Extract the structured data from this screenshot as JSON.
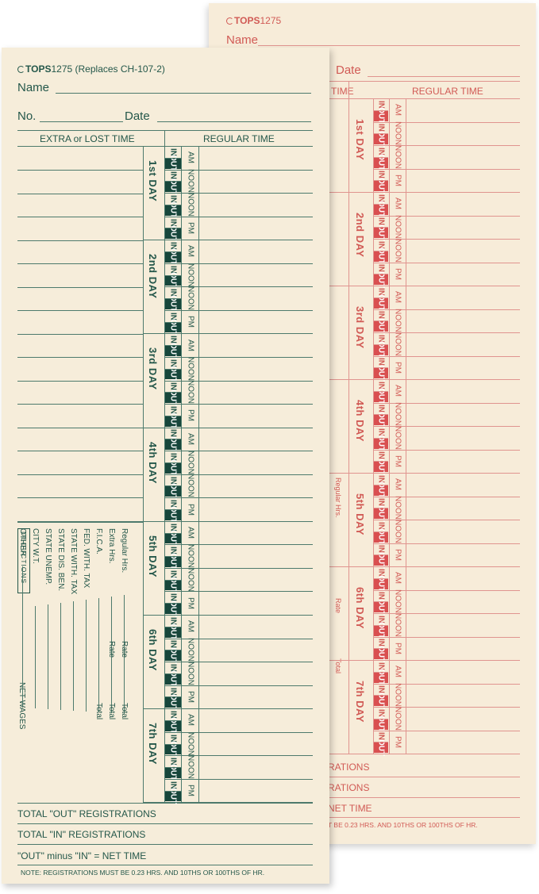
{
  "brand": "TOPS",
  "model": "1275",
  "replaces": "(Replaces CH-107-2)",
  "name_label": "Name",
  "no_label": "No.",
  "date_label": "Date",
  "extra_time_header": "EXTRA or LOST TIME",
  "regular_time_header": "REGULAR TIME",
  "days": [
    "1st DAY",
    "2nd DAY",
    "3rd DAY",
    "4th DAY",
    "5th DAY",
    "6th DAY",
    "7th DAY"
  ],
  "slot_labels": [
    "AM",
    "NOON",
    "NOON",
    "PM"
  ],
  "in_label": "IN",
  "out_label": "OUT",
  "deductions_label": "DEDUCTIONS",
  "payroll_lines": [
    "Regular Hrs.",
    "Extra Hrs.",
    "F.I.C.A.",
    "FED. WITH. TAX",
    "STATE WITH. TAX",
    "STATE DIS. BEN.",
    "STATE UNEMP.",
    "CITY W.T.",
    "OTHER"
  ],
  "rate_label": "Rate",
  "total_label": "Total",
  "net_wages_label": "NET WAGES",
  "footer": {
    "total_out": "TOTAL \"OUT\" REGISTRATIONS",
    "total_in": "TOTAL \"IN\" REGISTRATIONS",
    "net_time": "\"OUT\" minus \"IN\" = NET TIME",
    "note": "NOTE: REGISTRATIONS MUST BE 0.23 HRS. AND 10THS OR 100THS OF HR."
  },
  "back_card": {
    "brand": "TOPS",
    "model": "1275",
    "name_label": "Name",
    "date_label": "Date",
    "time_header_fragment": "TIME",
    "regular_time_header": "REGULAR TIME",
    "footer_fragments": [
      "RATIONS",
      "RATIONS",
      "NET TIME"
    ],
    "note_fragment": "T BE 0.23 HRS. AND 10THS OR 100THS OF HR.",
    "payroll_fragments": [
      "Regular Hrs.",
      "Rate",
      "Total"
    ]
  },
  "colors": {
    "front_ink": "#24574a",
    "back_ink": "#d15a55",
    "card": "#f6edda"
  }
}
